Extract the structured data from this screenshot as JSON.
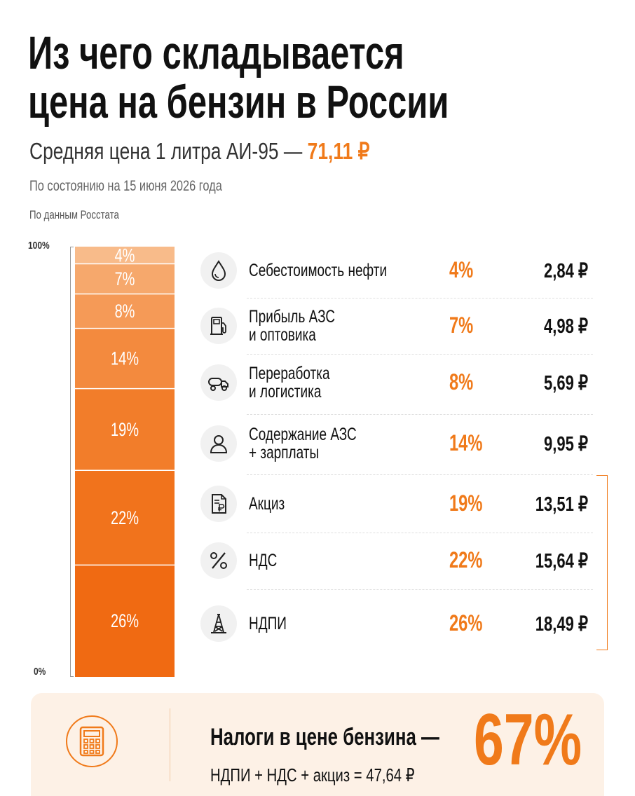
{
  "title_lines": [
    "Из чего складывается",
    "цена на бензин в России"
  ],
  "subtitle_prefix": "Средняя цена 1 литра АИ-95 — ",
  "subtitle_price": "71,11 ₽",
  "date_note": "По состоянию на 15 июня 2026 года",
  "source_note": "По данным Росстата",
  "colors": {
    "accent": "#f07a1a",
    "tax_bracket": "#f07a1a"
  },
  "chart_data": {
    "type": "bar",
    "stacked": true,
    "axis_labels": {
      "top": "100%",
      "bottom": "0%"
    },
    "ylim": [
      0,
      100
    ],
    "categories": [
      "Себестоимость нефти",
      "Прибыль АЗС и оптовика",
      "Переработка и логистика",
      "Содержание АЗС + зарплаты",
      "Акциз",
      "НДС",
      "НДПИ"
    ],
    "segments": [
      {
        "pct": 4,
        "label": "4%",
        "color": "#f8bb8a"
      },
      {
        "pct": 7,
        "label": "7%",
        "color": "#f6a86c"
      },
      {
        "pct": 8,
        "label": "8%",
        "color": "#f59a57"
      },
      {
        "pct": 14,
        "label": "14%",
        "color": "#f38a3e"
      },
      {
        "pct": 19,
        "label": "19%",
        "color": "#f27d2a"
      },
      {
        "pct": 22,
        "label": "22%",
        "color": "#f1731c"
      },
      {
        "pct": 26,
        "label": "26%",
        "color": "#f06a12"
      }
    ]
  },
  "rows": [
    {
      "icon": "oil-drop-icon",
      "label_lines": [
        "Себестоимость нефти"
      ],
      "pct": "4%",
      "amount": "2,84 ₽"
    },
    {
      "icon": "fuel-pump-icon",
      "label_lines": [
        "Прибыль АЗС",
        "и оптовика"
      ],
      "pct": "7%",
      "amount": "4,98 ₽"
    },
    {
      "icon": "tanker-truck-icon",
      "label_lines": [
        "Переработка",
        "и логистика"
      ],
      "pct": "8%",
      "amount": "5,69 ₽"
    },
    {
      "icon": "person-icon",
      "label_lines": [
        "Содержание АЗС",
        "+ зарплаты"
      ],
      "pct": "14%",
      "amount": "9,95 ₽"
    },
    {
      "icon": "ruble-document-icon",
      "label_lines": [
        "Акциз"
      ],
      "pct": "19%",
      "amount": "13,51 ₽"
    },
    {
      "icon": "percent-icon",
      "label_lines": [
        "НДС"
      ],
      "pct": "22%",
      "amount": "15,64 ₽"
    },
    {
      "icon": "oil-rig-icon",
      "label_lines": [
        "НДПИ"
      ],
      "pct": "26%",
      "amount": "18,49 ₽"
    }
  ],
  "summary": {
    "icon": "calculator-icon",
    "title": "Налоги в цене бензина —",
    "formula": "НДПИ + НДС + акциз = 47,64 ₽",
    "share": "67%"
  }
}
